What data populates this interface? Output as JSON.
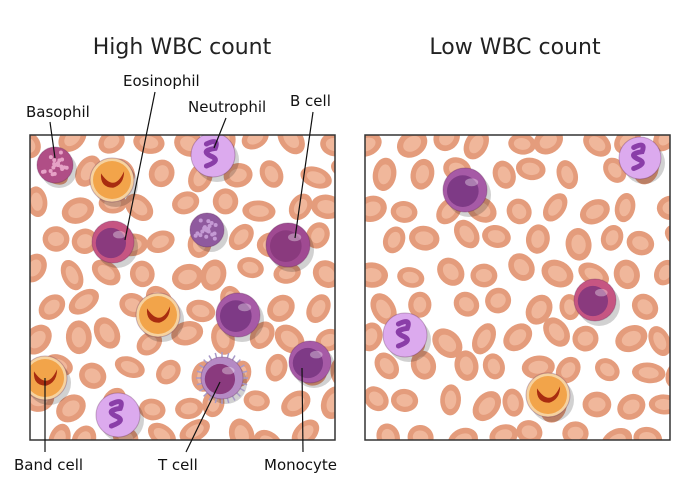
{
  "panels": [
    {
      "title": "High WBC count",
      "labels": [
        "Basophil",
        "Eosinophil",
        "Neutrophil",
        "B cell",
        "Band cell",
        "T cell",
        "Monocyte"
      ]
    },
    {
      "title": "Low WBC count"
    }
  ]
}
